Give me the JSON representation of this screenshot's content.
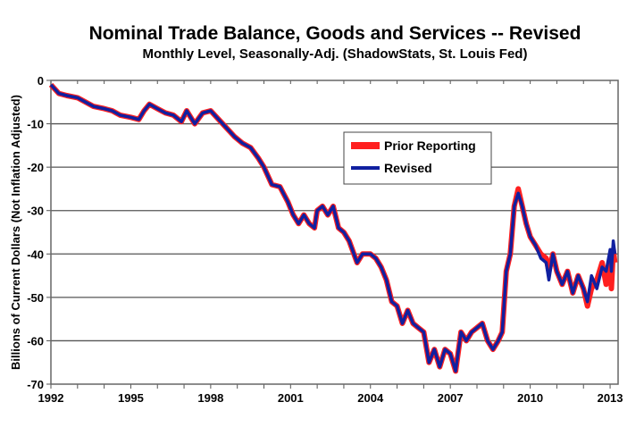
{
  "chart_data": {
    "type": "line",
    "title": "Nominal Trade Balance, Goods and Services -- Revised",
    "subtitle": "Monthly Level, Seasonally-Adj. (ShadowStats, St. Louis Fed)",
    "xlabel": "",
    "ylabel": "Billions of Current Dollars (Not Inflation Adjusted)",
    "xlim": [
      1992,
      2013.3
    ],
    "ylim": [
      -70,
      0
    ],
    "xticks": [
      1992,
      1995,
      1998,
      2001,
      2004,
      2007,
      2010,
      2013
    ],
    "xtick_labels": [
      "1992",
      "1995",
      "1998",
      "2001",
      "2004",
      "2007",
      "2010",
      "2013"
    ],
    "yticks": [
      0,
      -10,
      -20,
      -30,
      -40,
      -50,
      -60,
      -70
    ],
    "ytick_labels": [
      "0",
      "-10",
      "-20",
      "-30",
      "-40",
      "-50",
      "-60",
      "-70"
    ],
    "grid": "horizontal",
    "legend_position": "upper-right-center",
    "colors": {
      "prior": "#ff2020",
      "revised": "#1020a0"
    },
    "x": [
      1992.0,
      1992.3,
      1992.6,
      1993.0,
      1993.3,
      1993.6,
      1994.0,
      1994.3,
      1994.6,
      1995.0,
      1995.3,
      1995.5,
      1995.7,
      1996.0,
      1996.3,
      1996.6,
      1996.9,
      1997.1,
      1997.4,
      1997.7,
      1998.0,
      1998.3,
      1998.6,
      1998.9,
      1999.2,
      1999.5,
      1999.8,
      2000.0,
      2000.3,
      2000.6,
      2000.9,
      2001.1,
      2001.3,
      2001.5,
      2001.7,
      2001.9,
      2002.0,
      2002.2,
      2002.4,
      2002.6,
      2002.8,
      2003.0,
      2003.2,
      2003.5,
      2003.7,
      2004.0,
      2004.2,
      2004.4,
      2004.6,
      2004.8,
      2005.0,
      2005.2,
      2005.4,
      2005.6,
      2005.8,
      2006.0,
      2006.2,
      2006.4,
      2006.6,
      2006.8,
      2007.0,
      2007.2,
      2007.4,
      2007.6,
      2007.8,
      2008.0,
      2008.2,
      2008.4,
      2008.6,
      2008.8,
      2008.95,
      2009.1,
      2009.25,
      2009.4,
      2009.55,
      2009.7,
      2009.85,
      2010.0,
      2010.2,
      2010.4,
      2010.6,
      2010.7,
      2010.85,
      2011.0,
      2011.2,
      2011.4,
      2011.6,
      2011.8,
      2012.0,
      2012.15,
      2012.3,
      2012.5,
      2012.7,
      2012.85,
      2013.0,
      2013.05,
      2013.12,
      2013.18
    ],
    "series": [
      {
        "name": "Prior Reporting",
        "values": [
          -1,
          -3,
          -3.5,
          -4,
          -5,
          -6,
          -6.5,
          -7,
          -8,
          -8.5,
          -9,
          -7,
          -5.5,
          -6.5,
          -7.5,
          -8,
          -9.5,
          -7,
          -10,
          -7.5,
          -7,
          -9,
          -11,
          -13,
          -14.5,
          -15.5,
          -18,
          -20,
          -24,
          -24.5,
          -28,
          -31,
          -33,
          -31,
          -33,
          -34,
          -30,
          -29,
          -31,
          -29,
          -34,
          -35,
          -37,
          -42,
          -40,
          -40,
          -41,
          -43,
          -46,
          -51,
          -52,
          -56,
          -53,
          -56,
          -57,
          -58,
          -65,
          -62,
          -66,
          -62,
          -63,
          -67,
          -58,
          -60,
          -58,
          -57,
          -56,
          -60,
          -62,
          -60,
          -58,
          -44,
          -40,
          -29,
          -25,
          -29,
          -33,
          -36,
          -38,
          -40,
          -41,
          -44,
          -40,
          -44,
          -47,
          -44,
          -49,
          -45,
          -48,
          -52,
          -48,
          -46,
          -42,
          -47,
          -41,
          -48,
          -39,
          -42
        ]
      },
      {
        "name": "Revised",
        "values": [
          -1,
          -3,
          -3.5,
          -4,
          -5,
          -6,
          -6.5,
          -7,
          -8,
          -8.5,
          -9,
          -7,
          -5.5,
          -6.5,
          -7.5,
          -8,
          -9.5,
          -7,
          -10,
          -7.5,
          -7,
          -9,
          -11,
          -13,
          -14.5,
          -15.5,
          -18,
          -20,
          -24,
          -24.5,
          -28,
          -31,
          -33,
          -31,
          -33,
          -34,
          -30,
          -29,
          -31,
          -29,
          -34,
          -35,
          -37,
          -42,
          -40,
          -40,
          -41,
          -43,
          -46,
          -51,
          -52,
          -56,
          -53,
          -56,
          -57,
          -58,
          -65,
          -62,
          -66,
          -62,
          -63,
          -67,
          -58,
          -60,
          -58,
          -57,
          -56,
          -60,
          -62,
          -60,
          -58,
          -44,
          -40,
          -29,
          -26,
          -29,
          -33,
          -36,
          -38,
          -41,
          -42,
          -46,
          -40,
          -44,
          -47,
          -44,
          -49,
          -45,
          -48,
          -51,
          -45,
          -48,
          -43,
          -44,
          -39,
          -44,
          -37,
          -40
        ]
      }
    ]
  }
}
